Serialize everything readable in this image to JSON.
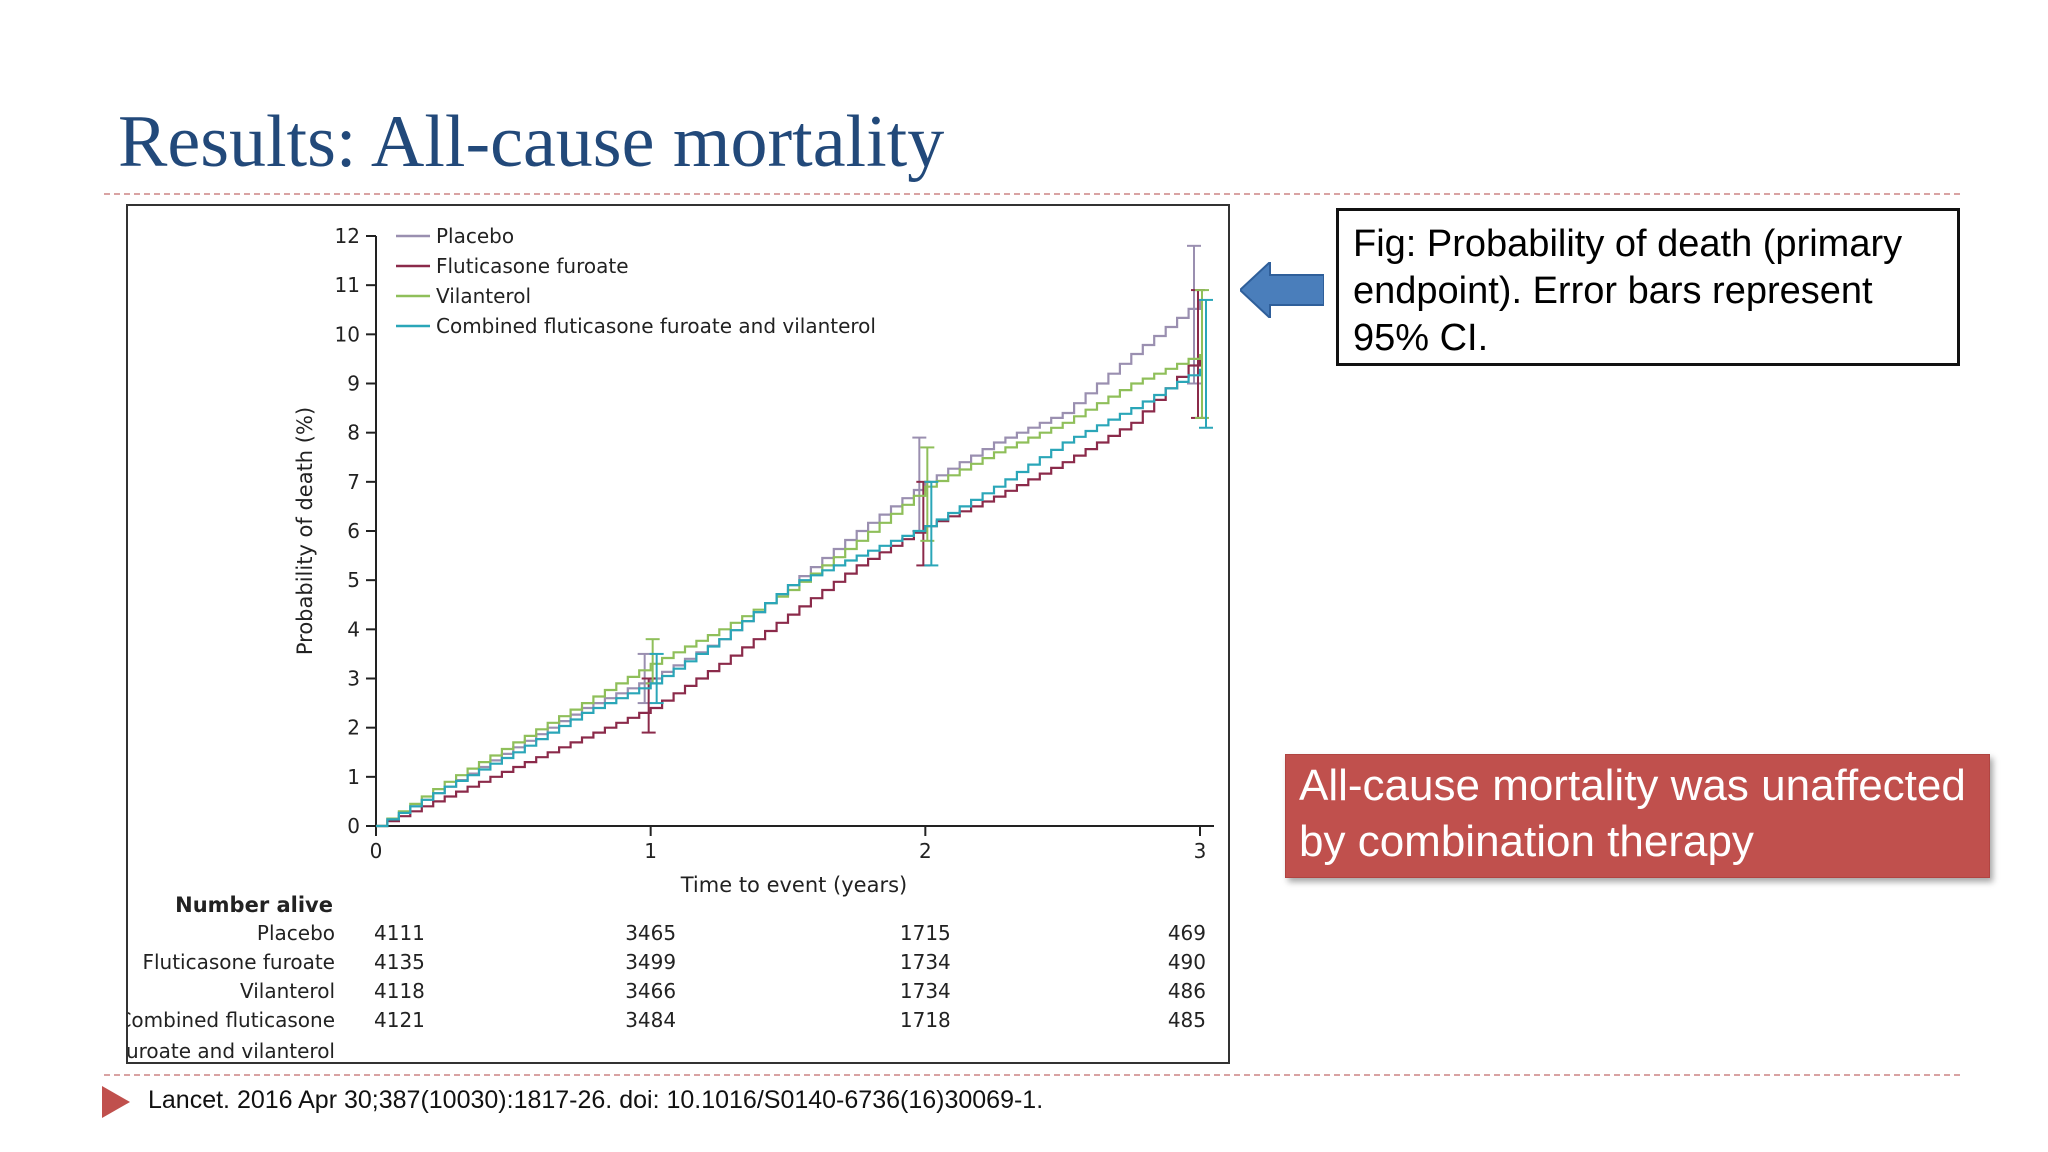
{
  "slide": {
    "title": "Results: All-cause mortality",
    "caption": "Fig: Probability of death (primary endpoint). Error bars represent 95% CI.",
    "callout": "All-cause mortality was unaffected by combination therapy",
    "source": "Lancet. 2016 Apr 30;387(10030):1817-26. doi: 10.1016/S0140-6736(16)30069-1.",
    "arrow_icon": "left-arrow-icon",
    "bullet_icon": "triangle-bullet-icon",
    "colors": {
      "title": "#22497a",
      "callout_bg": "#c0504d",
      "arrow": "#4a7ebb"
    }
  },
  "chart_data": {
    "type": "line",
    "xlabel": "Time to event (years)",
    "ylabel": "Probability of death (%)",
    "xlim": [
      0,
      3
    ],
    "ylim": [
      0,
      12
    ],
    "xticks": [
      "0",
      "1",
      "2",
      "3"
    ],
    "yticks": [
      "0",
      "1",
      "2",
      "3",
      "4",
      "5",
      "6",
      "7",
      "8",
      "9",
      "10",
      "11",
      "12"
    ],
    "legend_position": "top-left",
    "series": [
      {
        "name": "Placebo",
        "color": "#9a8fb0",
        "x": [
          0,
          0.25,
          0.5,
          0.75,
          1.0,
          1.25,
          1.5,
          1.75,
          2.0,
          2.25,
          2.5,
          2.75,
          3.0
        ],
        "y": [
          0,
          0.8,
          1.6,
          2.4,
          3.0,
          3.8,
          4.9,
          6.0,
          7.0,
          7.8,
          8.4,
          9.6,
          10.7
        ],
        "ci": [
          [
            1.0,
            2.5,
            3.5
          ],
          [
            2.0,
            6.0,
            7.9
          ],
          [
            3.0,
            9.0,
            11.8
          ]
        ]
      },
      {
        "name": "Fluticasone furoate",
        "color": "#8b2a4a",
        "x": [
          0,
          0.25,
          0.5,
          0.75,
          1.0,
          1.25,
          1.5,
          1.75,
          2.0,
          2.25,
          2.5,
          2.75,
          3.0
        ],
        "y": [
          0,
          0.6,
          1.2,
          1.8,
          2.4,
          3.3,
          4.3,
          5.3,
          6.1,
          6.7,
          7.4,
          8.2,
          9.6
        ],
        "ci": [
          [
            1.0,
            1.9,
            3.0
          ],
          [
            2.0,
            5.3,
            7.0
          ],
          [
            3.0,
            8.3,
            10.9
          ]
        ]
      },
      {
        "name": "Vilanterol",
        "color": "#8fbf5a",
        "x": [
          0,
          0.25,
          0.5,
          0.75,
          1.0,
          1.25,
          1.5,
          1.75,
          2.0,
          2.25,
          2.5,
          2.75,
          3.0
        ],
        "y": [
          0,
          0.9,
          1.7,
          2.5,
          3.3,
          4.0,
          4.8,
          5.8,
          6.9,
          7.6,
          8.2,
          9.0,
          9.6
        ],
        "ci": [
          [
            1.0,
            2.9,
            3.8
          ],
          [
            2.0,
            5.8,
            7.7
          ],
          [
            3.0,
            8.3,
            10.9
          ]
        ]
      },
      {
        "name": "Combined fluticasone furoate and vilanterol",
        "color": "#2aa6b8",
        "x": [
          0,
          0.25,
          0.5,
          0.75,
          1.0,
          1.25,
          1.5,
          1.75,
          2.0,
          2.25,
          2.5,
          2.75,
          3.0
        ],
        "y": [
          0,
          0.8,
          1.5,
          2.3,
          2.9,
          3.8,
          4.9,
          5.5,
          6.1,
          6.9,
          7.8,
          8.5,
          9.3
        ],
        "ci": [
          [
            1.0,
            2.5,
            3.5
          ],
          [
            2.0,
            5.3,
            7.0
          ],
          [
            3.0,
            8.1,
            10.7
          ]
        ]
      }
    ],
    "number_alive": {
      "heading": "Number alive",
      "rows": [
        {
          "label": "Placebo",
          "values": [
            "4111",
            "3465",
            "1715",
            "469"
          ]
        },
        {
          "label": "Fluticasone furoate",
          "values": [
            "4135",
            "3499",
            "1734",
            "490"
          ]
        },
        {
          "label": "Vilanterol",
          "values": [
            "4118",
            "3466",
            "1734",
            "486"
          ]
        },
        {
          "label": "Combined fluticasone furoate and vilanterol",
          "values": [
            "4121",
            "3484",
            "1718",
            "485"
          ]
        }
      ]
    }
  }
}
